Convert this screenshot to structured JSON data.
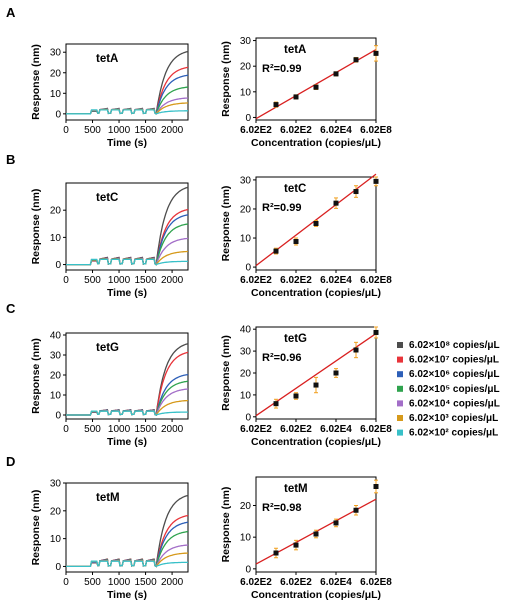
{
  "legend": [
    {
      "label": "6.02×10⁸ copies/μL",
      "color": "#4d4d4d"
    },
    {
      "label": "6.02×10⁷ copies/μL",
      "color": "#e8343a"
    },
    {
      "label": "6.02×10⁶ copies/μL",
      "color": "#2d5fb8"
    },
    {
      "label": "6.02×10⁵ copies/μL",
      "color": "#2fa34e"
    },
    {
      "label": "6.02×10⁴ copies/μL",
      "color": "#a36ec8"
    },
    {
      "label": "6.02×10³ copies/μL",
      "color": "#d69a1c"
    },
    {
      "label": "6.02×10² copies/μL",
      "color": "#38c0c8"
    }
  ],
  "chart_data": [
    {
      "panel": "A",
      "sensorgram": {
        "type": "line",
        "label": "tetA",
        "xlabel": "Time (s)",
        "ylabel": "Response (nm)",
        "xlim": [
          0,
          2300
        ],
        "ylim": [
          -3,
          34
        ],
        "xticks": [
          0,
          500,
          1000,
          1500,
          2000
        ],
        "yticks": [
          0,
          10,
          20,
          30
        ],
        "plateaus": [
          31.5,
          23.5,
          19.5,
          13.5,
          8.0,
          5.5,
          1.5
        ]
      },
      "calibration": {
        "type": "scatter",
        "label": "tetA",
        "r2": "R²=0.99",
        "xlabel": "Concentration (copies/μL)",
        "ylabel": "Response (nm)",
        "xticklabels": [
          "6.02E2",
          "6.02E2",
          "6.02E4",
          "6.02E8"
        ],
        "ylim": [
          -1,
          31
        ],
        "yticks": [
          0,
          10,
          20,
          30
        ],
        "x": [
          1,
          2,
          3,
          4,
          5,
          6
        ],
        "y": [
          5.0,
          8.0,
          11.8,
          17.0,
          22.5,
          25.0
        ],
        "err": [
          1.0,
          0.8,
          0.9,
          0.8,
          0.9,
          3.0
        ],
        "fit": [
          -0.5,
          26.5
        ]
      }
    },
    {
      "panel": "B",
      "sensorgram": {
        "type": "line",
        "label": "tetC",
        "xlabel": "Time (s)",
        "ylabel": "Response (nm)",
        "xlim": [
          0,
          2300
        ],
        "ylim": [
          -2,
          30
        ],
        "xticks": [
          0,
          500,
          1000,
          1500,
          2000
        ],
        "yticks": [
          0,
          10,
          20
        ],
        "plateaus": [
          29.5,
          21.0,
          19.0,
          15.5,
          10.0,
          5.0,
          1.2
        ]
      },
      "calibration": {
        "type": "scatter",
        "label": "tetC",
        "r2": "R²=0.99",
        "xlabel": "Concentration (copies/μL)",
        "ylabel": "Response (nm)",
        "xticklabels": [
          "6.02E2",
          "6.02E2",
          "6.02E4",
          "6.02E8"
        ],
        "ylim": [
          -1,
          31
        ],
        "yticks": [
          0,
          10,
          20,
          30
        ],
        "x": [
          1,
          2,
          3,
          4,
          5,
          6
        ],
        "y": [
          5.5,
          8.8,
          15.0,
          22.0,
          26.0,
          29.5
        ],
        "err": [
          1.0,
          1.2,
          1.0,
          1.8,
          2.0,
          1.5
        ],
        "fit": [
          0.5,
          32.0
        ]
      }
    },
    {
      "panel": "C",
      "sensorgram": {
        "type": "line",
        "label": "tetG",
        "xlabel": "Time (s)",
        "ylabel": "Response (nm)",
        "xlim": [
          0,
          2300
        ],
        "ylim": [
          -2,
          41
        ],
        "xticks": [
          0,
          500,
          1000,
          1500,
          2000
        ],
        "yticks": [
          0,
          10,
          20,
          30,
          40
        ],
        "plateaus": [
          37.0,
          32.5,
          21.0,
          17.5,
          13.5,
          7.5,
          1.5
        ]
      },
      "calibration": {
        "type": "scatter",
        "label": "tetG",
        "r2": "R²=0.96",
        "xlabel": "Concentration (copies/μL)",
        "ylabel": "Response (nm)",
        "xticklabels": [
          "6.02E2",
          "6.02E2",
          "6.02E4",
          "6.02E8"
        ],
        "ylim": [
          -1,
          41
        ],
        "yticks": [
          0,
          10,
          20,
          30,
          40
        ],
        "x": [
          1,
          2,
          3,
          4,
          5,
          6
        ],
        "y": [
          6.0,
          9.5,
          14.5,
          20.0,
          30.5,
          38.5
        ],
        "err": [
          2.0,
          1.5,
          3.5,
          2.0,
          3.5,
          2.5
        ],
        "fit": [
          0.5,
          38.0
        ]
      }
    },
    {
      "panel": "D",
      "sensorgram": {
        "type": "line",
        "label": "tetM",
        "xlabel": "Time (s)",
        "ylabel": "Response (nm)",
        "xlim": [
          0,
          2300
        ],
        "ylim": [
          -2,
          30
        ],
        "xticks": [
          0,
          500,
          1000,
          1500,
          2000
        ],
        "yticks": [
          0,
          10,
          20,
          30
        ],
        "plateaus": [
          26.5,
          19.0,
          16.5,
          13.0,
          8.0,
          5.0,
          1.5
        ]
      },
      "calibration": {
        "type": "scatter",
        "label": "tetM",
        "r2": "R²=0.98",
        "xlabel": "Concentration (copies/μL)",
        "ylabel": "Response (nm)",
        "xticklabels": [
          "6.02E2",
          "6.02E2",
          "6.02E4",
          "6.02E8"
        ],
        "ylim": [
          -1,
          29
        ],
        "yticks": [
          0,
          10,
          20
        ],
        "x": [
          1,
          2,
          3,
          4,
          5,
          6
        ],
        "y": [
          5.0,
          7.5,
          11.0,
          14.5,
          18.5,
          26.0
        ],
        "err": [
          1.5,
          1.5,
          1.2,
          1.2,
          1.5,
          2.0
        ],
        "fit": [
          1.5,
          22.0
        ]
      }
    }
  ]
}
